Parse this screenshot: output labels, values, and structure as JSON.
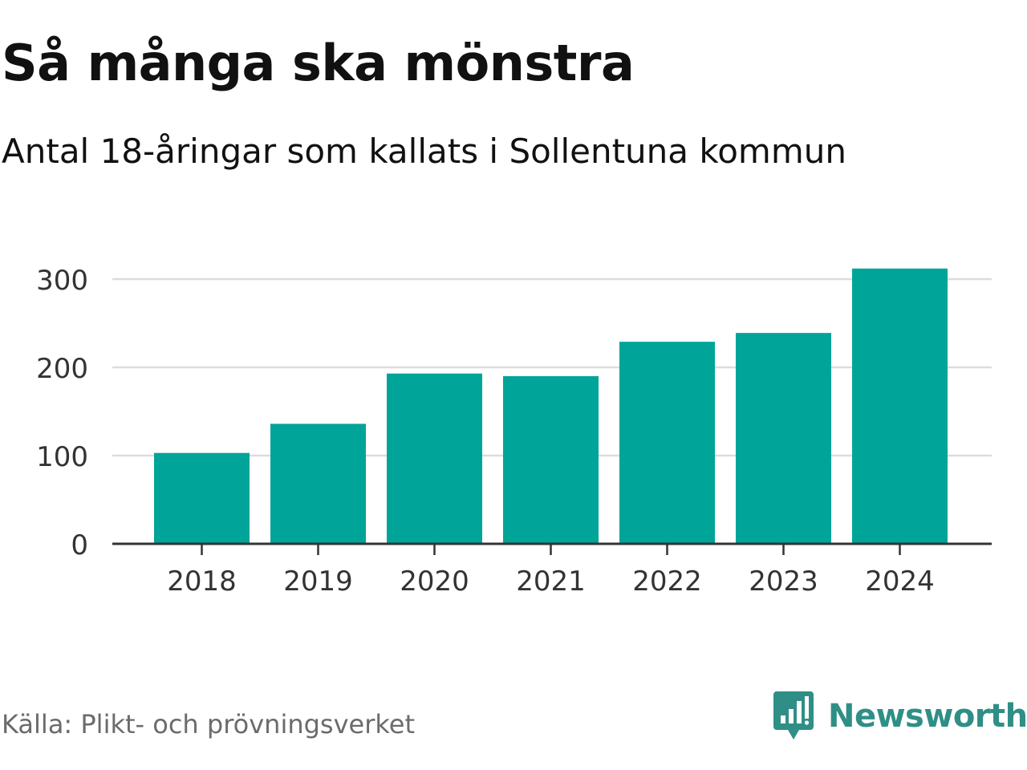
{
  "title": "Så många ska mönstra",
  "subtitle": "Antal 18-åringar som kallats i Sollentuna kommun",
  "source": "Källa: Plikt- och prövningsverket",
  "brand": {
    "name": "Newsworthy",
    "icon": "newsworthy-logo-icon",
    "color": "#2f8f86"
  },
  "colors": {
    "bar": "#00a499",
    "grid": "#dcdcdc",
    "axis": "#333333",
    "text": "#111111",
    "tick": "#333333"
  },
  "chart_data": {
    "type": "bar",
    "title": "Så många ska mönstra",
    "subtitle": "Antal 18-åringar som kallats i Sollentuna kommun",
    "categories": [
      "2018",
      "2019",
      "2020",
      "2021",
      "2022",
      "2023",
      "2024"
    ],
    "values": [
      103,
      136,
      193,
      190,
      229,
      239,
      312
    ],
    "xlabel": "",
    "ylabel": "",
    "ylim": [
      0,
      300
    ],
    "yticks": [
      0,
      100,
      200,
      300
    ],
    "grid": true,
    "legend": "none"
  }
}
